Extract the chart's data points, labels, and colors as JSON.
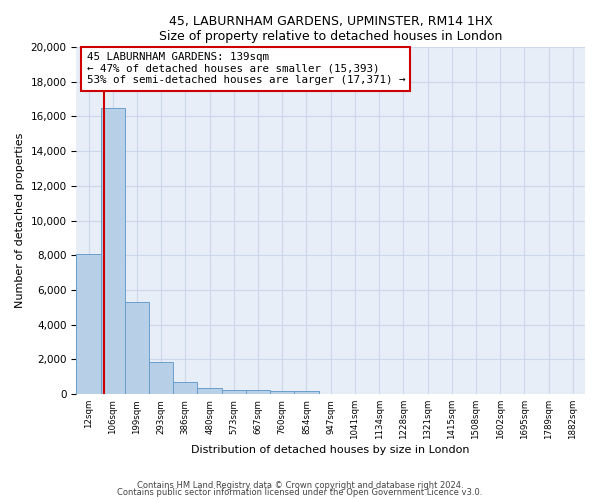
{
  "title1": "45, LABURNHAM GARDENS, UPMINSTER, RM14 1HX",
  "title2": "Size of property relative to detached houses in London",
  "xlabel": "Distribution of detached houses by size in London",
  "ylabel": "Number of detached properties",
  "categories": [
    "12sqm",
    "106sqm",
    "199sqm",
    "293sqm",
    "386sqm",
    "480sqm",
    "573sqm",
    "667sqm",
    "760sqm",
    "854sqm",
    "947sqm",
    "1041sqm",
    "1134sqm",
    "1228sqm",
    "1321sqm",
    "1415sqm",
    "1508sqm",
    "1602sqm",
    "1695sqm",
    "1789sqm",
    "1882sqm"
  ],
  "values": [
    8100,
    16500,
    5300,
    1850,
    700,
    350,
    270,
    215,
    195,
    175,
    0,
    0,
    0,
    0,
    0,
    0,
    0,
    0,
    0,
    0,
    0
  ],
  "bar_color": "#b8cfe8",
  "bar_edge_color": "#6aa0cc",
  "annotation_text": "45 LABURNHAM GARDENS: 139sqm\n← 47% of detached houses are smaller (15,393)\n53% of semi-detached houses are larger (17,371) →",
  "annotation_box_color": "#ffffff",
  "annotation_box_edge": "#cc0000",
  "vline_color": "#cc0000",
  "vline_x": 1.15,
  "ylim": [
    0,
    20000
  ],
  "yticks": [
    0,
    2000,
    4000,
    6000,
    8000,
    10000,
    12000,
    14000,
    16000,
    18000,
    20000
  ],
  "footer1": "Contains HM Land Registry data © Crown copyright and database right 2024.",
  "footer2": "Contains public sector information licensed under the Open Government Licence v3.0.",
  "grid_color": "#ccd8ea",
  "bg_color": "#e8eef8"
}
